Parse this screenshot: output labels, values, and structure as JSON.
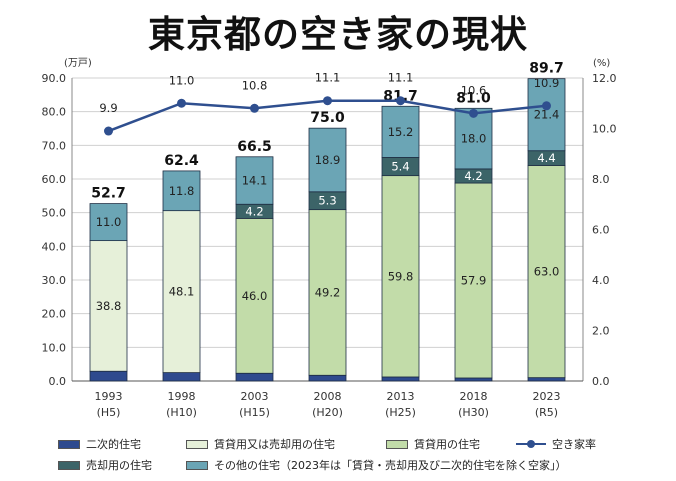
{
  "title": "東京都の空き家の現状",
  "chart_data": {
    "type": "bar",
    "left_axis_unit": "(万戸)",
    "right_axis_unit": "(%)",
    "ylim": [
      0,
      90
    ],
    "y2lim": [
      0,
      12
    ],
    "yticks": [
      "0.0",
      "10.0",
      "20.0",
      "30.0",
      "40.0",
      "50.0",
      "60.0",
      "70.0",
      "80.0",
      "90.0"
    ],
    "y2ticks": [
      "0.0",
      "2.0",
      "4.0",
      "6.0",
      "8.0",
      "10.0",
      "12.0"
    ],
    "categories": [
      "1993",
      "1998",
      "2003",
      "2008",
      "2013",
      "2018",
      "2023"
    ],
    "category_sub": [
      "(H5)",
      "(H10)",
      "(H15)",
      "(H20)",
      "(H25)",
      "(H30)",
      "(R5)"
    ],
    "series": [
      {
        "name": "二次的住宅",
        "color": "#2e4a8e",
        "values": [
          2.9,
          2.5,
          2.3,
          1.7,
          1.2,
          0.9,
          1.0
        ]
      },
      {
        "name": "賃貸用又は売却用の住宅",
        "color": "#e6f0d9",
        "values": [
          38.8,
          48.1,
          null,
          null,
          null,
          null,
          null
        ]
      },
      {
        "name": "賃貸用の住宅",
        "color": "#c2dca9",
        "values": [
          null,
          null,
          46.0,
          49.2,
          59.8,
          57.9,
          63.0
        ]
      },
      {
        "name": "売却用の住宅",
        "color": "#3c6468",
        "values": [
          null,
          null,
          4.2,
          5.3,
          5.4,
          4.2,
          4.4
        ]
      },
      {
        "name": "その他の住宅（2023年は「賃貸・売却用及び二次的住宅を除く空家」）",
        "color": "#6ba5b5",
        "values": [
          11.0,
          11.8,
          14.1,
          18.9,
          15.2,
          18.0,
          21.4
        ]
      }
    ],
    "totals": [
      "52.7",
      "62.4",
      "66.5",
      "75.0",
      "81.7",
      "81.0",
      "89.7"
    ],
    "line": {
      "name": "空き家率",
      "color": "#2f4f8f",
      "values": [
        9.9,
        11.0,
        10.8,
        11.1,
        11.1,
        10.6,
        10.9
      ]
    }
  }
}
